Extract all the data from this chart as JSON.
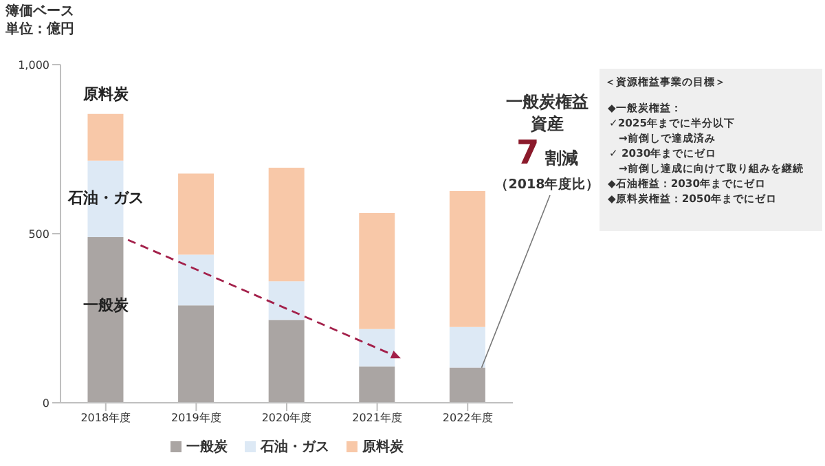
{
  "chart_data": {
    "type": "bar",
    "title": "簿価ベース",
    "subtitle": "単位：億円",
    "stacked": true,
    "categories": [
      "2018年度",
      "2019年度",
      "2020年度",
      "2021年度",
      "2022年度"
    ],
    "series": [
      {
        "name": "一般炭",
        "color": "#aaa5a3",
        "values": [
          490,
          288,
          245,
          107,
          104
        ]
      },
      {
        "name": "石油・ガス",
        "color": "#dde9f5",
        "values": [
          226,
          150,
          114,
          111,
          120
        ]
      },
      {
        "name": "原料炭",
        "color": "#f8c8a8",
        "values": [
          138,
          240,
          336,
          343,
          402
        ]
      }
    ],
    "ylim": [
      0,
      1000
    ],
    "yticks": [
      0,
      500,
      {
        "value": 1000,
        "label": "1,000"
      }
    ],
    "legend": "bottom",
    "annotations": [
      "原料炭",
      "石油・ガス",
      "一般炭",
      "一般炭権益",
      "資産",
      "7",
      "割減",
      "（2018年度比）",
      "＜資源権益事業の目標＞",
      "◆一般炭権益：",
      "✓2025年までに半分以下",
      "→前倒しで達成済み",
      "✓ 2030年までにゼロ",
      "→前倒し達成に向けて取り組みを継続",
      "◆石油権益：2030年までにゼロ",
      "◆原料炭権益：2050年までにゼロ"
    ]
  }
}
